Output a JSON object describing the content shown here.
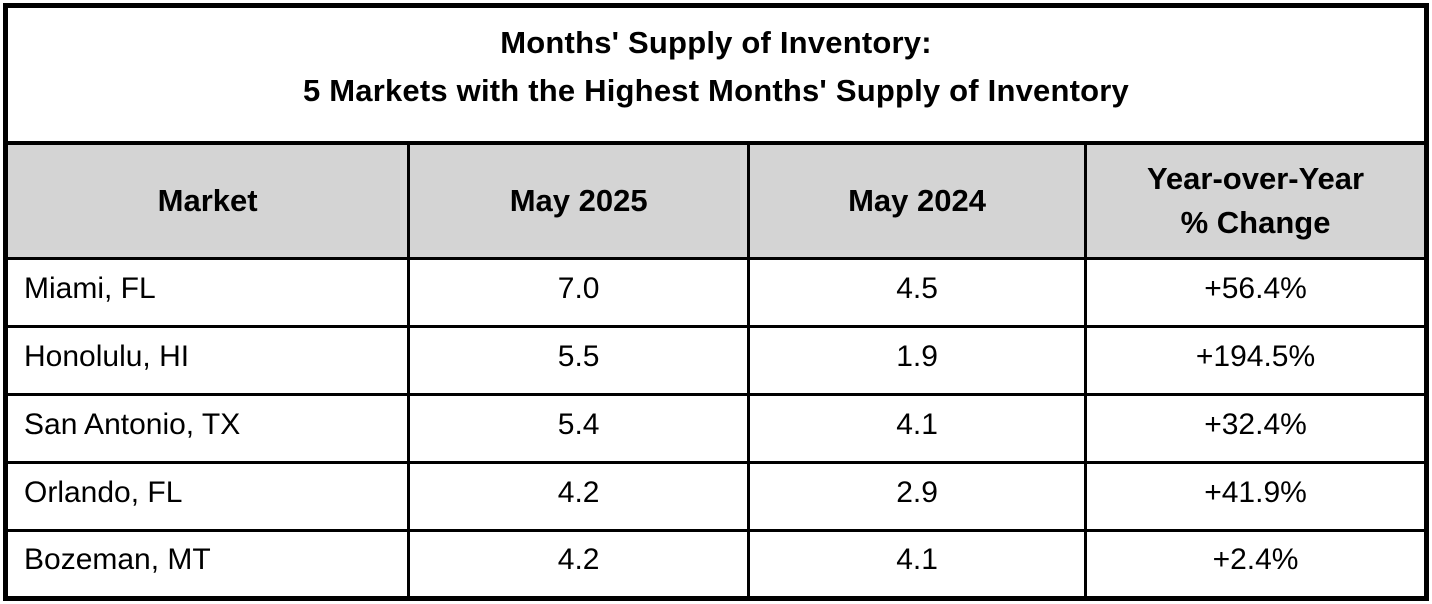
{
  "title": {
    "line1": "Months' Supply of Inventory:",
    "line2": "5 Markets with the Highest Months' Supply of Inventory"
  },
  "table": {
    "headers": [
      "Market",
      "May 2025",
      "May 2024",
      "Year-over-Year\n% Change"
    ],
    "rows": [
      [
        "Miami, FL",
        "7.0",
        "4.5",
        "+56.4%"
      ],
      [
        "Honolulu, HI",
        "5.5",
        "1.9",
        "+194.5%"
      ],
      [
        "San Antonio, TX",
        "5.4",
        "4.1",
        "+32.4%"
      ],
      [
        "Orlando, FL",
        "4.2",
        "2.9",
        "+41.9%"
      ],
      [
        "Bozeman, MT",
        "4.2",
        "4.1",
        "+2.4%"
      ]
    ]
  },
  "colors": {
    "header_background": "#d4d4d4",
    "border": "#000000",
    "background": "#ffffff",
    "text": "#000000"
  },
  "chart_data": {
    "type": "table",
    "title": "Months' Supply of Inventory: 5 Markets with the Highest Months' Supply of Inventory",
    "columns": [
      "Market",
      "May 2025",
      "May 2024",
      "Year-over-Year % Change"
    ],
    "rows": [
      {
        "market": "Miami, FL",
        "may_2025": 7.0,
        "may_2024": 4.5,
        "yoy_pct_change": 56.4
      },
      {
        "market": "Honolulu, HI",
        "may_2025": 5.5,
        "may_2024": 1.9,
        "yoy_pct_change": 194.5
      },
      {
        "market": "San Antonio, TX",
        "may_2025": 5.4,
        "may_2024": 4.1,
        "yoy_pct_change": 32.4
      },
      {
        "market": "Orlando, FL",
        "may_2025": 4.2,
        "may_2024": 2.9,
        "yoy_pct_change": 41.9
      },
      {
        "market": "Bozeman, MT",
        "may_2025": 4.2,
        "may_2024": 4.1,
        "yoy_pct_change": 2.4
      }
    ]
  }
}
